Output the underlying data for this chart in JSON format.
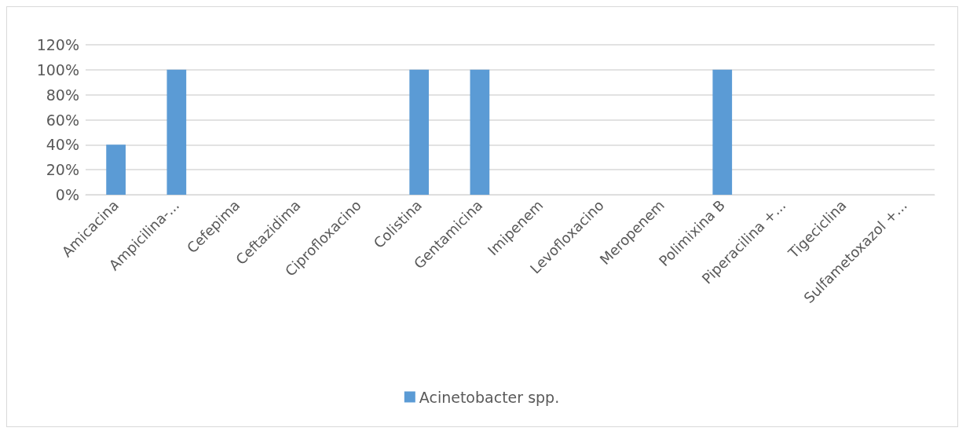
{
  "chart_data": {
    "type": "bar",
    "categories": [
      "Amicacina",
      "Ampicilina-...",
      "Cefepima",
      "Ceftazidima",
      "Ciprofloxacino",
      "Colistina",
      "Gentamicina",
      "Imipenem",
      "Levofloxacino",
      "Meropenem",
      "Polimixina B",
      "Piperacilina +...",
      "Tigeciclina",
      "Sulfametoxazol +..."
    ],
    "series": [
      {
        "name": "Acinetobacter spp.",
        "color": "#5b9bd5",
        "values": [
          40,
          100,
          0,
          0,
          0,
          100,
          100,
          0,
          0,
          0,
          100,
          0,
          0,
          0
        ]
      }
    ],
    "ylim": [
      0,
      120
    ],
    "yticks": [
      {
        "value": 0,
        "label": "0%"
      },
      {
        "value": 20,
        "label": "20%"
      },
      {
        "value": 40,
        "label": "40%"
      },
      {
        "value": 60,
        "label": "60%"
      },
      {
        "value": 80,
        "label": "80%"
      },
      {
        "value": 100,
        "label": "100%"
      },
      {
        "value": 120,
        "label": "120%"
      }
    ],
    "grid": "y",
    "legend": "bottom"
  }
}
